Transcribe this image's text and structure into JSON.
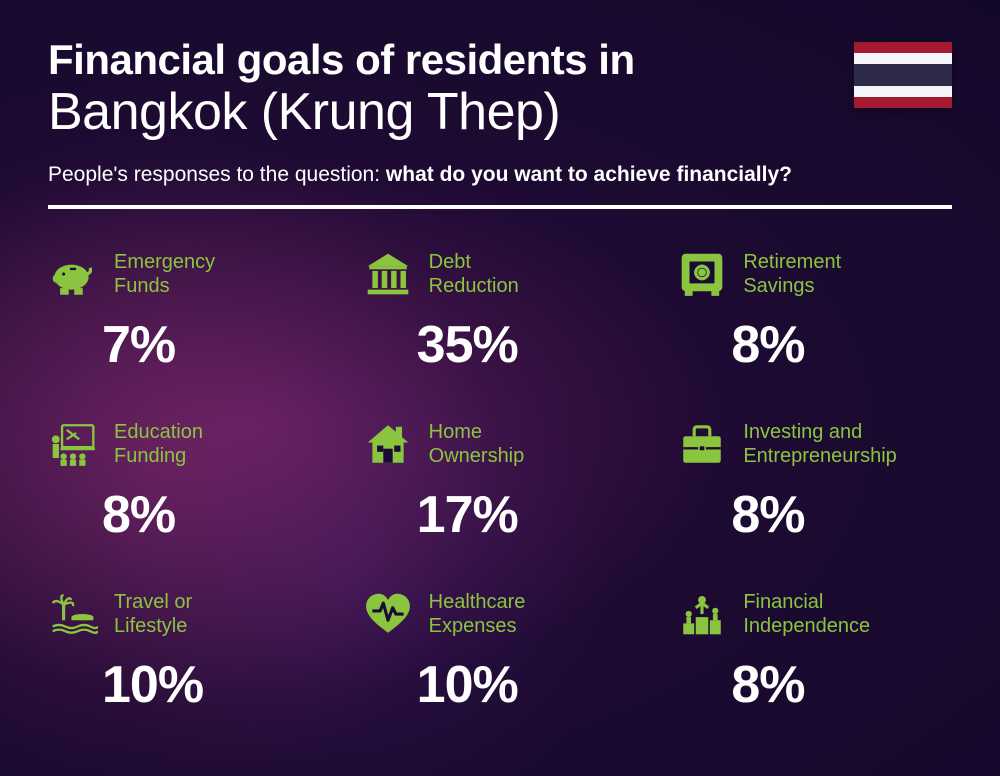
{
  "header": {
    "title_prefix": "Financial goals of residents in",
    "city": "Bangkok (Krung Thep)",
    "subtitle_lead": "People's responses to the question: ",
    "subtitle_question": "what do you want to achieve financially?"
  },
  "style": {
    "accent_color": "#8BC53F",
    "text_color": "#ffffff",
    "title_bold_fontsize": 42,
    "title_light_fontsize": 52,
    "subtitle_fontsize": 21,
    "label_fontsize": 20,
    "pct_fontsize": 52,
    "divider_height": 4,
    "grid_columns": 3
  },
  "flag": {
    "country": "Thailand",
    "stripes": [
      "#A51931",
      "#F4F5F8",
      "#2D2A4A",
      "#F4F5F8",
      "#A51931"
    ]
  },
  "items": [
    {
      "icon": "piggy-bank-icon",
      "label": "Emergency\nFunds",
      "pct": "7%"
    },
    {
      "icon": "bank-icon",
      "label": "Debt\nReduction",
      "pct": "35%"
    },
    {
      "icon": "safe-icon",
      "label": "Retirement\nSavings",
      "pct": "8%"
    },
    {
      "icon": "education-icon",
      "label": "Education\nFunding",
      "pct": "8%"
    },
    {
      "icon": "house-icon",
      "label": "Home\nOwnership",
      "pct": "17%"
    },
    {
      "icon": "briefcase-icon",
      "label": "Investing and\nEntrepreneurship",
      "pct": "8%"
    },
    {
      "icon": "travel-icon",
      "label": "Travel or\nLifestyle",
      "pct": "10%"
    },
    {
      "icon": "healthcare-icon",
      "label": "Healthcare\nExpenses",
      "pct": "10%"
    },
    {
      "icon": "independence-icon",
      "label": "Financial\nIndependence",
      "pct": "8%"
    }
  ]
}
